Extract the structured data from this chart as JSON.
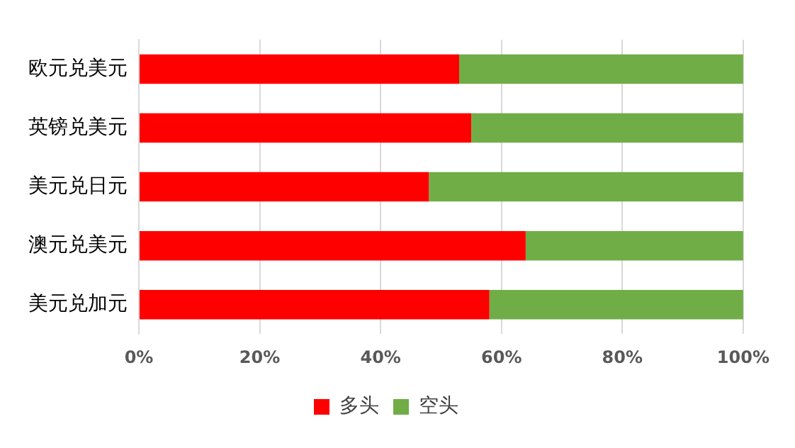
{
  "chart_data": {
    "type": "bar",
    "orientation": "horizontal",
    "stacked": true,
    "categories": [
      "欧元兑美元",
      "英镑兑美元",
      "美元兑日元",
      "澳元兑美元",
      "美元兑加元"
    ],
    "series": [
      {
        "name": "多头",
        "color": "#ff0000",
        "values": [
          53,
          55,
          48,
          64,
          58
        ]
      },
      {
        "name": "空头",
        "color": "#70ad47",
        "values": [
          47,
          45,
          52,
          36,
          42
        ]
      }
    ],
    "xlim": [
      0,
      100
    ],
    "xticks": [
      {
        "value": 0,
        "label": "0%"
      },
      {
        "value": 20,
        "label": "20%"
      },
      {
        "value": 40,
        "label": "40%"
      },
      {
        "value": 60,
        "label": "60%"
      },
      {
        "value": 80,
        "label": "80%"
      },
      {
        "value": 100,
        "label": "100%"
      }
    ],
    "grid": "x",
    "legend": "bottom"
  }
}
